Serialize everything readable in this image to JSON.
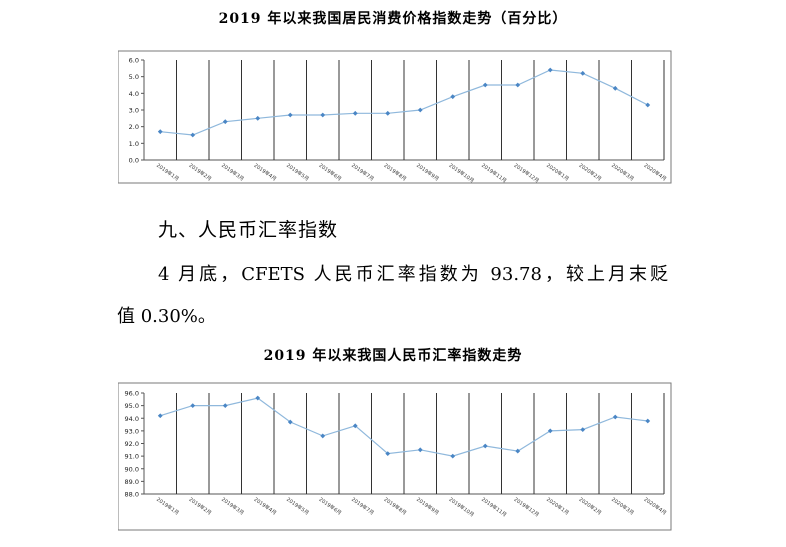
{
  "chart_data": [
    {
      "type": "line",
      "title": "2019 年以来我国居民消费价格指数走势（百分比）",
      "categories": [
        "2019年1月",
        "2019年2月",
        "2019年3月",
        "2019年4月",
        "2019年5月",
        "2019年6月",
        "2019年7月",
        "2019年8月",
        "2019年9月",
        "2019年10月",
        "2019年11月",
        "2019年12月",
        "2020年1月",
        "2020年2月",
        "2020年3月",
        "2020年4月"
      ],
      "values": [
        1.7,
        1.5,
        2.3,
        2.5,
        2.7,
        2.7,
        2.8,
        2.8,
        3.0,
        3.8,
        4.5,
        4.5,
        5.4,
        5.2,
        4.3,
        3.3
      ],
      "ylim": [
        0.0,
        6.0
      ],
      "yticks": [
        "0.0",
        "1.0",
        "2.0",
        "3.0",
        "4.0",
        "5.0",
        "6.0"
      ],
      "grid": "vertical",
      "line_color": "#8fb8dc",
      "marker_color": "#4a86c5"
    },
    {
      "type": "line",
      "title": "2019 年以来我国人民币汇率指数走势",
      "categories": [
        "2019年1月",
        "2019年2月",
        "2019年3月",
        "2019年4月",
        "2019年5月",
        "2019年6月",
        "2019年7月",
        "2019年8月",
        "2019年9月",
        "2019年10月",
        "2019年11月",
        "2019年12月",
        "2020年1月",
        "2020年2月",
        "2020年3月",
        "2020年4月"
      ],
      "values": [
        94.2,
        95.0,
        95.0,
        95.6,
        93.7,
        92.6,
        93.4,
        91.2,
        91.5,
        91.0,
        91.8,
        91.4,
        93.0,
        93.1,
        94.1,
        93.78
      ],
      "ylim": [
        88.0,
        96.0
      ],
      "yticks": [
        "88.0",
        "89.0",
        "90.0",
        "91.0",
        "92.0",
        "93.0",
        "94.0",
        "95.0",
        "96.0"
      ],
      "grid": "vertical",
      "line_color": "#8fb8dc",
      "marker_color": "#4a86c5"
    }
  ],
  "section": {
    "heading": "九、人民币汇率指数"
  },
  "paragraph": {
    "line1": "4 月底，CFETS 人民币汇率指数为 93.78，较上月末贬",
    "line2": "值 0.30%。"
  }
}
